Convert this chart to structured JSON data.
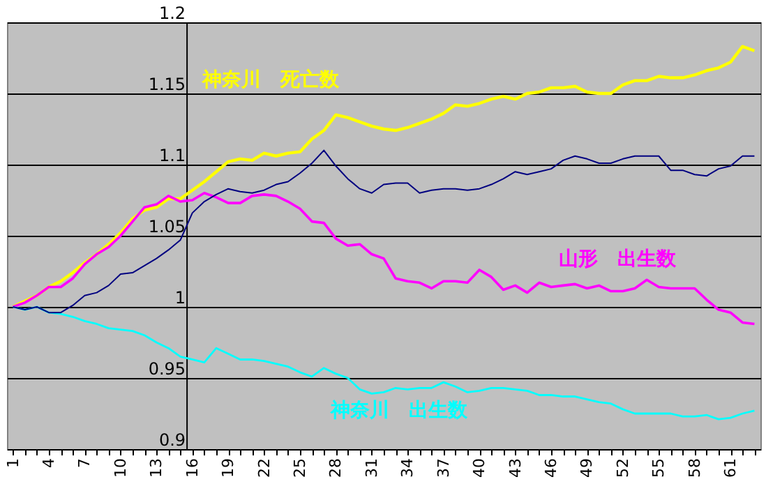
{
  "chart_data": {
    "type": "line",
    "categories": [
      "1",
      null,
      null,
      "4",
      null,
      null,
      "7",
      null,
      null,
      "10",
      null,
      null,
      "13",
      null,
      null,
      "16",
      null,
      null,
      "19",
      null,
      null,
      "22",
      null,
      null,
      "25",
      null,
      null,
      "28",
      null,
      null,
      "31",
      null,
      null,
      "34",
      null,
      null,
      "37",
      null,
      null,
      "40",
      null,
      null,
      "43",
      null,
      null,
      "46",
      null,
      null,
      "49",
      null,
      null,
      "52",
      null,
      null,
      "55",
      null,
      null,
      "58",
      null,
      null,
      "61",
      null,
      null
    ],
    "series": [
      {
        "name": "神奈川　死亡数",
        "color": "#ffff00",
        "values": [
          1.0,
          1.004,
          1.008,
          1.014,
          1.018,
          1.024,
          1.031,
          1.037,
          1.044,
          1.052,
          1.062,
          1.068,
          1.07,
          1.076,
          1.076,
          1.082,
          1.088,
          1.095,
          1.102,
          1.104,
          1.103,
          1.108,
          1.106,
          1.108,
          1.109,
          1.118,
          1.124,
          1.135,
          1.133,
          1.13,
          1.127,
          1.125,
          1.124,
          1.126,
          1.129,
          1.132,
          1.136,
          1.142,
          1.141,
          1.143,
          1.146,
          1.148,
          1.146,
          1.15,
          1.151,
          1.154,
          1.154,
          1.155,
          1.151,
          1.15,
          1.15,
          1.156,
          1.159,
          1.159,
          1.162,
          1.161,
          1.161,
          1.163,
          1.166,
          1.168,
          1.172,
          1.183,
          1.18
        ]
      },
      {
        "color": "#000080",
        "values": [
          1.0,
          0.998,
          1.0,
          0.996,
          0.996,
          1.001,
          1.008,
          1.01,
          1.015,
          1.023,
          1.024,
          1.029,
          1.034,
          1.04,
          1.047,
          1.066,
          1.074,
          1.079,
          1.083,
          1.081,
          1.08,
          1.082,
          1.086,
          1.088,
          1.094,
          1.101,
          1.11,
          1.099,
          1.09,
          1.083,
          1.08,
          1.086,
          1.087,
          1.087,
          1.08,
          1.082,
          1.083,
          1.083,
          1.082,
          1.083,
          1.086,
          1.09,
          1.095,
          1.093,
          1.095,
          1.097,
          1.103,
          1.106,
          1.104,
          1.101,
          1.101,
          1.104,
          1.106,
          1.106,
          1.106,
          1.096,
          1.096,
          1.093,
          1.092,
          1.097,
          1.099,
          1.106,
          1.106
        ]
      },
      {
        "name": "山形　出生数",
        "color": "#ff00ff",
        "values": [
          1.0,
          1.003,
          1.008,
          1.014,
          1.014,
          1.02,
          1.03,
          1.037,
          1.042,
          1.05,
          1.06,
          1.07,
          1.072,
          1.078,
          1.074,
          1.075,
          1.08,
          1.077,
          1.073,
          1.073,
          1.078,
          1.079,
          1.078,
          1.074,
          1.069,
          1.06,
          1.059,
          1.048,
          1.043,
          1.044,
          1.037,
          1.034,
          1.02,
          1.018,
          1.017,
          1.013,
          1.018,
          1.018,
          1.017,
          1.026,
          1.021,
          1.012,
          1.015,
          1.01,
          1.017,
          1.014,
          1.015,
          1.016,
          1.013,
          1.015,
          1.011,
          1.011,
          1.013,
          1.019,
          1.014,
          1.013,
          1.013,
          1.013,
          1.005,
          0.998,
          0.996,
          0.989,
          0.988
        ]
      },
      {
        "name": "神奈川　出生数",
        "color": "#00ffff",
        "values": [
          1.0,
          0.998,
          1.0,
          0.996,
          0.995,
          0.993,
          0.99,
          0.988,
          0.985,
          0.984,
          0.983,
          0.98,
          0.975,
          0.971,
          0.965,
          0.963,
          0.961,
          0.971,
          0.967,
          0.963,
          0.963,
          0.962,
          0.96,
          0.958,
          0.954,
          0.951,
          0.957,
          0.953,
          0.95,
          0.942,
          0.939,
          0.94,
          0.943,
          0.942,
          0.943,
          0.943,
          0.947,
          0.944,
          0.94,
          0.941,
          0.943,
          0.943,
          0.942,
          0.941,
          0.938,
          0.938,
          0.937,
          0.937,
          0.935,
          0.933,
          0.932,
          0.928,
          0.925,
          0.925,
          0.925,
          0.925,
          0.923,
          0.923,
          0.924,
          0.921,
          0.922,
          0.925,
          0.927
        ]
      }
    ],
    "ylim": [
      0.9,
      1.2
    ],
    "yticks": [
      0.9,
      0.95,
      1,
      1.05,
      1.1,
      1.15,
      1.2
    ],
    "grid": "y"
  }
}
